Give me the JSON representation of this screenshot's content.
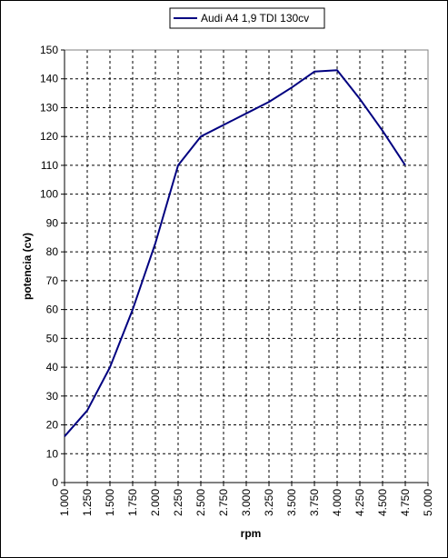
{
  "chart_data": {
    "type": "line",
    "xlabel": "rpm",
    "ylabel": "potencia (cv)",
    "xlim": [
      1000,
      5000
    ],
    "ylim": [
      0,
      150
    ],
    "grid": true,
    "legend_position": "top-center",
    "x_ticks": [
      "1.000",
      "1.250",
      "1.500",
      "1.750",
      "2.000",
      "2.250",
      "2.500",
      "2.750",
      "3.000",
      "3.250",
      "3.500",
      "3.750",
      "4.000",
      "4.250",
      "4.500",
      "4.750",
      "5.000"
    ],
    "y_ticks": [
      "0",
      "10",
      "20",
      "30",
      "40",
      "50",
      "60",
      "70",
      "80",
      "90",
      "100",
      "110",
      "120",
      "130",
      "140",
      "150"
    ],
    "series": [
      {
        "name": "Audi A4 1,9 TDI 130cv",
        "color": "#000080",
        "points": [
          [
            1000,
            16
          ],
          [
            1250,
            25
          ],
          [
            1500,
            40
          ],
          [
            1750,
            60
          ],
          [
            2000,
            83
          ],
          [
            2250,
            110
          ],
          [
            2500,
            120
          ],
          [
            2750,
            124
          ],
          [
            3000,
            128
          ],
          [
            3250,
            132
          ],
          [
            3500,
            137
          ],
          [
            3750,
            142.5
          ],
          [
            4000,
            143
          ],
          [
            4250,
            133
          ],
          [
            4500,
            122
          ],
          [
            4750,
            110
          ]
        ]
      }
    ]
  }
}
